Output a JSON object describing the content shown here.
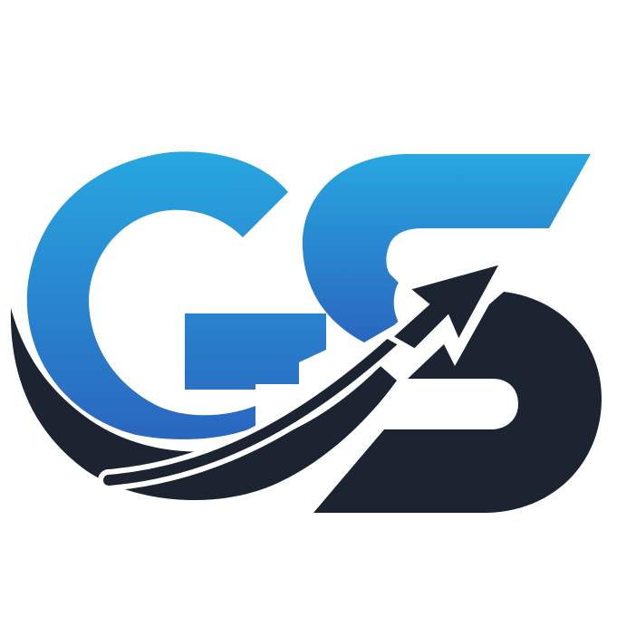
{
  "logo": {
    "letters": "GS",
    "icon": "growth-arrow-icon",
    "colors": {
      "background": "#ffffff",
      "blue_light": "#27a7e0",
      "blue_dark": "#2a66bf",
      "navy": "#1b2430",
      "outline": "#ffffff"
    }
  }
}
